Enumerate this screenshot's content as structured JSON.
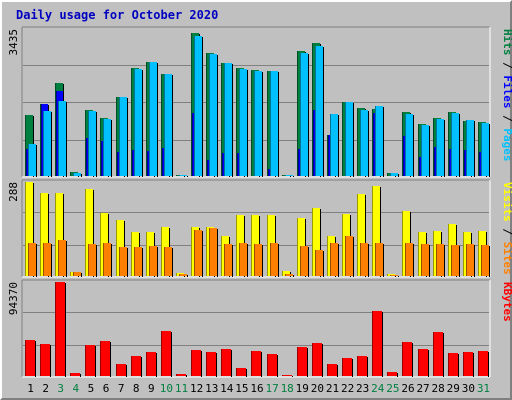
{
  "title": "Daily usage for October 2020",
  "colors": {
    "pages": "#00C0FF",
    "files": "#0000FF",
    "hits": "#008040",
    "sites": "#FF8000",
    "visits": "#FFFF00",
    "kbytes": "#FF0000",
    "weekend_label": "#008040",
    "weekday_label": "#000000"
  },
  "chart_data": [
    {
      "type": "bar",
      "name": "hits-files-pages",
      "ymax_label": "3435",
      "ylim": [
        0,
        3435
      ],
      "right_label": {
        "parts": [
          "Pages",
          "Files",
          "Hits"
        ],
        "separator": " / "
      },
      "categories": [
        "1",
        "2",
        "3",
        "4",
        "5",
        "6",
        "7",
        "8",
        "9",
        "10",
        "11",
        "12",
        "13",
        "14",
        "15",
        "16",
        "17",
        "18",
        "19",
        "20",
        "21",
        "22",
        "23",
        "24",
        "25",
        "26",
        "27",
        "28",
        "29",
        "30",
        "31"
      ],
      "series": [
        {
          "name": "Hits",
          "values": [
            1420,
            1690,
            2180,
            85,
            1540,
            1350,
            1850,
            2530,
            2670,
            2380,
            30,
            3330,
            2870,
            2650,
            2520,
            2470,
            2460,
            15,
            2920,
            3100,
            960,
            1730,
            1580,
            1570,
            65,
            1490,
            1210,
            1360,
            1500,
            1290,
            1260
          ]
        },
        {
          "name": "Files",
          "values": [
            640,
            1690,
            1980,
            0,
            880,
            820,
            560,
            600,
            580,
            650,
            0,
            1480,
            380,
            540,
            540,
            0,
            170,
            0,
            620,
            1540,
            960,
            0,
            0,
            1470,
            0,
            940,
            450,
            680,
            620,
            600,
            560
          ]
        },
        {
          "name": "Pages",
          "values": [
            740,
            1530,
            1760,
            80,
            1510,
            1330,
            1840,
            2500,
            2660,
            2380,
            30,
            3270,
            2850,
            2640,
            2490,
            2450,
            2450,
            15,
            2880,
            3040,
            1440,
            1720,
            1550,
            1630,
            65,
            1450,
            1190,
            1340,
            1480,
            1300,
            1250
          ]
        }
      ]
    },
    {
      "type": "bar",
      "name": "sites-visits",
      "ymax_label": "288",
      "ylim": [
        0,
        288
      ],
      "right_label": {
        "parts": [
          "Sites",
          "Visits"
        ],
        "separator": " / "
      },
      "categories": [
        "1",
        "2",
        "3",
        "4",
        "5",
        "6",
        "7",
        "8",
        "9",
        "10",
        "11",
        "12",
        "13",
        "14",
        "15",
        "16",
        "17",
        "18",
        "19",
        "20",
        "21",
        "22",
        "23",
        "24",
        "25",
        "26",
        "27",
        "28",
        "29",
        "30",
        "31"
      ],
      "series": [
        {
          "name": "Visits",
          "values": [
            288,
            254,
            255,
            12,
            266,
            193,
            173,
            135,
            135,
            150,
            9,
            150,
            151,
            123,
            187,
            186,
            187,
            14,
            178,
            208,
            123,
            191,
            250,
            276,
            7,
            200,
            134,
            139,
            160,
            136,
            138
          ]
        },
        {
          "name": "Sites",
          "values": [
            101,
            101,
            111,
            12,
            97,
            101,
            90,
            89,
            93,
            89,
            5,
            141,
            148,
            99,
            100,
            97,
            101,
            5,
            92,
            80,
            101,
            123,
            101,
            102,
            4,
            101,
            97,
            99,
            96,
            98,
            95
          ]
        }
      ]
    },
    {
      "type": "bar",
      "name": "kbytes",
      "ymax_label": "94370",
      "ylim": [
        0,
        94370
      ],
      "right_label": {
        "parts": [
          "KBytes"
        ],
        "separator": ""
      },
      "categories": [
        "1",
        "2",
        "3",
        "4",
        "5",
        "6",
        "7",
        "8",
        "9",
        "10",
        "11",
        "12",
        "13",
        "14",
        "15",
        "16",
        "17",
        "18",
        "19",
        "20",
        "21",
        "22",
        "23",
        "24",
        "25",
        "26",
        "27",
        "28",
        "29",
        "30",
        "31"
      ],
      "series": [
        {
          "name": "KBytes",
          "values": [
            36400,
            31800,
            94370,
            3300,
            30800,
            35400,
            11600,
            20300,
            24200,
            45300,
            2000,
            26400,
            24200,
            27300,
            8200,
            25400,
            21900,
            1500,
            28900,
            33300,
            11600,
            17700,
            19600,
            65600,
            4200,
            34000,
            27000,
            44000,
            22600,
            23700,
            25400
          ]
        }
      ]
    }
  ],
  "x_axis": {
    "labels": [
      "1",
      "2",
      "3",
      "4",
      "5",
      "6",
      "7",
      "8",
      "9",
      "10",
      "11",
      "12",
      "13",
      "14",
      "15",
      "16",
      "17",
      "18",
      "19",
      "20",
      "21",
      "22",
      "23",
      "24",
      "25",
      "26",
      "27",
      "28",
      "29",
      "30",
      "31"
    ],
    "weekend": [
      false,
      false,
      true,
      true,
      false,
      false,
      false,
      false,
      false,
      true,
      true,
      false,
      false,
      false,
      false,
      false,
      true,
      true,
      false,
      false,
      false,
      false,
      false,
      true,
      true,
      false,
      false,
      false,
      false,
      false,
      true
    ]
  }
}
